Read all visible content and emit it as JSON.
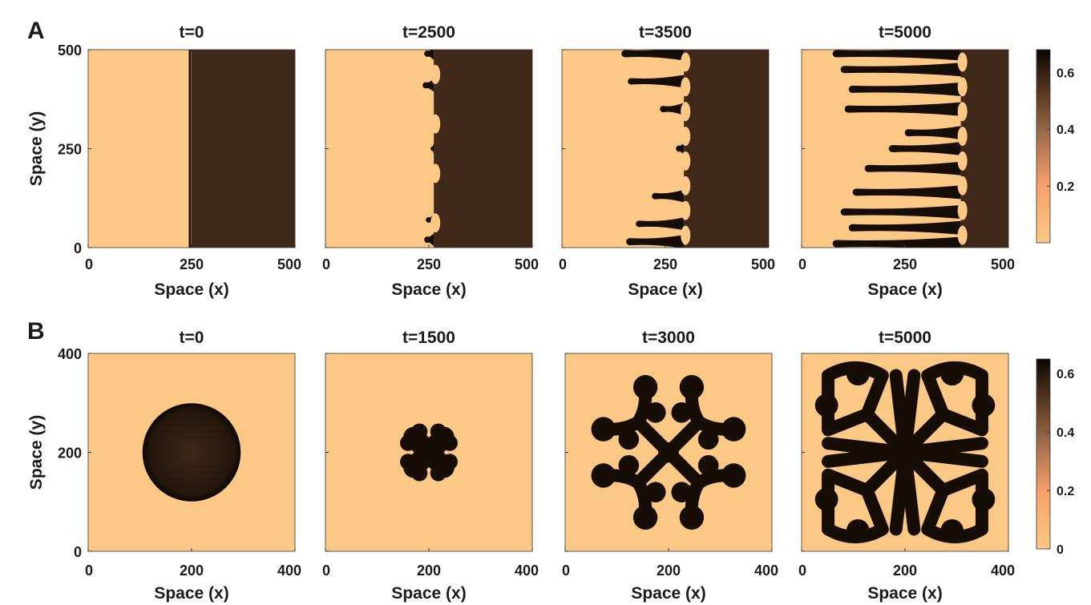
{
  "figure": {
    "colorscale": [
      "#fcc885",
      "#f7a06a",
      "#a46e4c",
      "#52331e",
      "#0b0603"
    ],
    "background_color": "#fcc885",
    "dark_color": "#3f2818"
  },
  "chart_data": [
    {
      "panel": "A",
      "type": "heatmap",
      "title": "t=0",
      "xlabel": "Space (x)",
      "ylabel": "Space (y)",
      "xlim": [
        0,
        500
      ],
      "ylim": [
        0,
        500
      ],
      "xticks": [
        "0",
        "250",
        "500"
      ],
      "yticks": [
        "0",
        "250",
        "500"
      ],
      "pattern": "front",
      "front_x": 250
    },
    {
      "panel": "A",
      "type": "heatmap",
      "title": "t=2500",
      "xlabel": "Space (x)",
      "ylabel": "",
      "xlim": [
        0,
        500
      ],
      "ylim": [
        0,
        500
      ],
      "xticks": [
        "0",
        "250",
        "500"
      ],
      "yticks": [],
      "pattern": "front",
      "front_x": 262
    },
    {
      "panel": "A",
      "type": "heatmap",
      "title": "t=3500",
      "xlabel": "Space (x)",
      "ylabel": "",
      "xlim": [
        0,
        500
      ],
      "ylim": [
        0,
        500
      ],
      "xticks": [
        "0",
        "250",
        "500"
      ],
      "yticks": [],
      "pattern": "front",
      "front_x": 295
    },
    {
      "panel": "A",
      "type": "heatmap",
      "title": "t=5000",
      "xlabel": "Space (x)",
      "ylabel": "",
      "xlim": [
        0,
        500
      ],
      "ylim": [
        0,
        500
      ],
      "xticks": [
        "0",
        "250",
        "500"
      ],
      "yticks": [],
      "pattern": "front",
      "front_x": 385
    },
    {
      "panel": "B",
      "type": "heatmap",
      "title": "t=0",
      "xlabel": "Space (x)",
      "ylabel": "Space (y)",
      "xlim": [
        0,
        400
      ],
      "ylim": [
        0,
        400
      ],
      "xticks": [
        "0",
        "200",
        "400"
      ],
      "yticks": [
        "0",
        "200",
        "400"
      ],
      "pattern": "disk",
      "radius": 95
    },
    {
      "panel": "B",
      "type": "heatmap",
      "title": "t=1500",
      "xlabel": "Space (x)",
      "ylabel": "",
      "xlim": [
        0,
        400
      ],
      "ylim": [
        0,
        400
      ],
      "xticks": [
        "0",
        "200",
        "400"
      ],
      "yticks": [],
      "pattern": "lobes",
      "reach": 65
    },
    {
      "panel": "B",
      "type": "heatmap",
      "title": "t=3000",
      "xlabel": "Space (x)",
      "ylabel": "",
      "xlim": [
        0,
        400
      ],
      "ylim": [
        0,
        400
      ],
      "xticks": [
        "0",
        "200",
        "400"
      ],
      "yticks": [],
      "pattern": "branches",
      "reach": 140
    },
    {
      "panel": "B",
      "type": "heatmap",
      "title": "t=5000",
      "xlabel": "Space (x)",
      "ylabel": "",
      "xlim": [
        0,
        400
      ],
      "ylim": [
        0,
        400
      ],
      "xticks": [
        "0",
        "200",
        "400"
      ],
      "yticks": [],
      "pattern": "maze",
      "reach": 175
    }
  ],
  "panels": [
    {
      "label": "A",
      "colorbar": {
        "ticks": [
          "0.6",
          "0.4",
          "0.2"
        ],
        "values": [
          0.6,
          0.4,
          0.2
        ],
        "min": 0.0,
        "max": 0.68
      }
    },
    {
      "label": "B",
      "colorbar": {
        "ticks": [
          "0.6",
          "0.4",
          "0.2",
          "0"
        ],
        "values": [
          0.6,
          0.4,
          0.2,
          0.0
        ],
        "min": 0.0,
        "max": 0.65
      }
    }
  ]
}
